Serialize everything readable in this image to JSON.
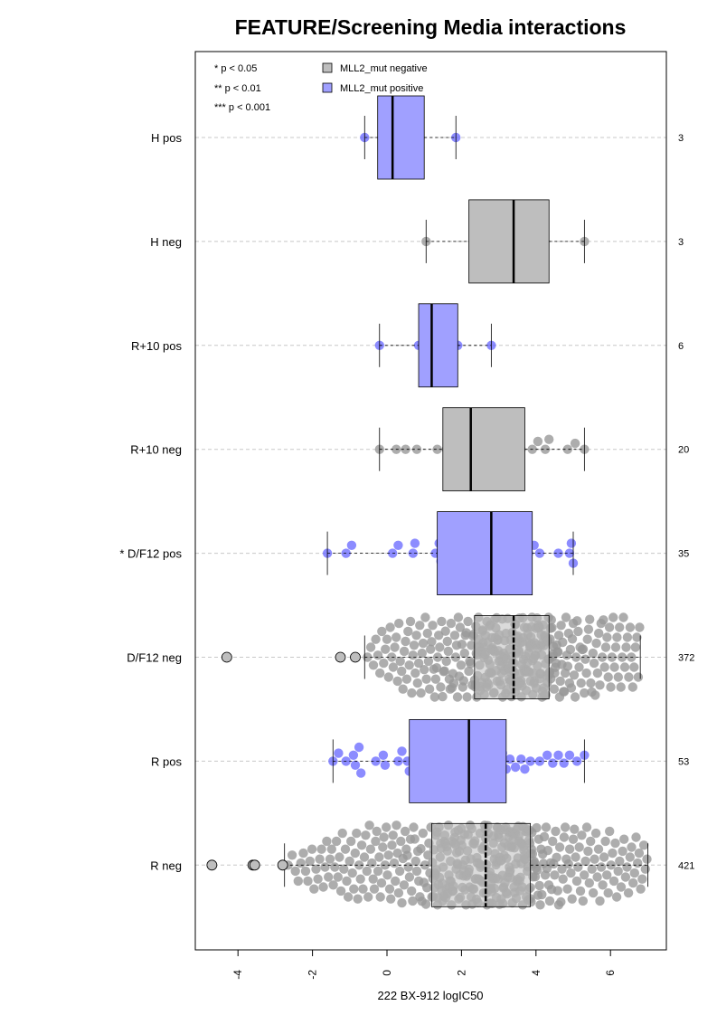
{
  "chart_data": {
    "type": "boxplot",
    "orientation": "horizontal",
    "title": "FEATURE/Screening Media interactions",
    "xlabel": "222 BX-912 logIC50",
    "xlim": [
      -5.2,
      7.5
    ],
    "xticks": [
      "-4",
      "-2",
      "0",
      "2",
      "4",
      "6"
    ],
    "colors": {
      "negative_box": "#bebebe",
      "positive_box": "#a0a0ff",
      "negative_point": "#999999",
      "positive_point": "#6060ff",
      "outlier_fill": "#bebebe",
      "grid": "#c8c8c8"
    },
    "significance_legend": [
      "* p < 0.05",
      "** p < 0.01",
      "*** p < 0.001"
    ],
    "legend": [
      {
        "label": "MLL2_mut negative",
        "color": "#bebebe"
      },
      {
        "label": "MLL2_mut positive",
        "color": "#a0a0ff"
      }
    ],
    "groups": [
      {
        "label": "H pos",
        "n": "3",
        "group": "positive",
        "whisker_low": -0.6,
        "q1": -0.25,
        "median": 0.15,
        "q3": 1.0,
        "whisker_high": 1.85,
        "outliers": [],
        "points": [
          -0.6,
          0.15,
          1.85
        ]
      },
      {
        "label": "H neg",
        "n": "3",
        "group": "negative",
        "whisker_low": 1.05,
        "q1": 2.2,
        "median": 3.4,
        "q3": 4.35,
        "whisker_high": 5.3,
        "outliers": [],
        "points": [
          1.05,
          3.4,
          5.3
        ]
      },
      {
        "label": "R+10 pos",
        "n": "6",
        "group": "positive",
        "whisker_low": -0.2,
        "q1": 0.85,
        "median": 1.2,
        "q3": 1.9,
        "whisker_high": 2.8,
        "outliers": [],
        "points": [
          -0.2,
          0.85,
          1.05,
          1.3,
          1.9,
          2.8
        ]
      },
      {
        "label": "R+10 neg",
        "n": "20",
        "group": "negative",
        "whisker_low": -0.2,
        "q1": 1.5,
        "median": 2.25,
        "q3": 3.7,
        "whisker_high": 5.3,
        "outliers": [],
        "points": [
          -0.2,
          0.25,
          0.5,
          0.8,
          1.35,
          1.6,
          1.7,
          2.1,
          2.2,
          2.3,
          2.45,
          3.1,
          3.6,
          3.9,
          4.05,
          4.25,
          4.35,
          4.85,
          5.05,
          5.3
        ]
      },
      {
        "label": "* D/F12 pos",
        "n": "35",
        "group": "positive",
        "whisker_low": -1.6,
        "q1": 1.35,
        "median": 2.8,
        "q3": 3.9,
        "whisker_high": 5.0,
        "outliers": [],
        "points": [
          -1.6,
          -1.1,
          -0.95,
          0.15,
          0.3,
          0.7,
          0.75,
          1.3,
          1.4,
          1.45,
          1.5,
          1.7,
          1.95,
          2.1,
          2.2,
          2.35,
          2.5,
          2.6,
          2.7,
          2.8,
          2.85,
          2.95,
          3.1,
          3.25,
          3.35,
          3.45,
          3.55,
          3.6,
          3.8,
          3.95,
          4.1,
          4.6,
          4.9,
          4.95,
          5.0
        ]
      },
      {
        "label": "D/F12 neg",
        "n": "372",
        "group": "negative",
        "whisker_low": -0.6,
        "q1": 2.35,
        "median": 3.4,
        "q3": 4.35,
        "whisker_high": 6.8,
        "outliers": [
          -4.3,
          -1.25,
          -0.85
        ],
        "points_summary": {
          "count": 372,
          "min": -0.6,
          "max": 6.8
        }
      },
      {
        "label": "R pos",
        "n": "53",
        "group": "positive",
        "whisker_low": -1.45,
        "q1": 0.6,
        "median": 2.2,
        "q3": 3.2,
        "whisker_high": 5.3,
        "outliers": [],
        "points": [
          -1.45,
          -1.3,
          -1.1,
          -0.9,
          -0.85,
          -0.75,
          -0.7,
          -0.3,
          -0.1,
          -0.05,
          0.3,
          0.4,
          0.55,
          0.6,
          0.75,
          0.9,
          1.05,
          1.25,
          1.35,
          1.5,
          1.6,
          1.7,
          1.8,
          1.9,
          1.95,
          2.0,
          2.1,
          2.2,
          2.25,
          2.35,
          2.4,
          2.5,
          2.6,
          2.7,
          2.8,
          2.85,
          2.9,
          3.0,
          3.1,
          3.2,
          3.3,
          3.45,
          3.6,
          3.7,
          3.85,
          4.1,
          4.3,
          4.45,
          4.6,
          4.75,
          4.9,
          5.1,
          5.3
        ]
      },
      {
        "label": "R neg",
        "n": "421",
        "group": "negative",
        "whisker_low": -2.75,
        "q1": 1.2,
        "median": 2.65,
        "q3": 3.85,
        "whisker_high": 7.0,
        "outliers": [
          -4.7,
          -3.6,
          -3.55,
          -2.8
        ],
        "points_summary": {
          "count": 421,
          "min": -2.75,
          "max": 7.0
        }
      }
    ]
  }
}
